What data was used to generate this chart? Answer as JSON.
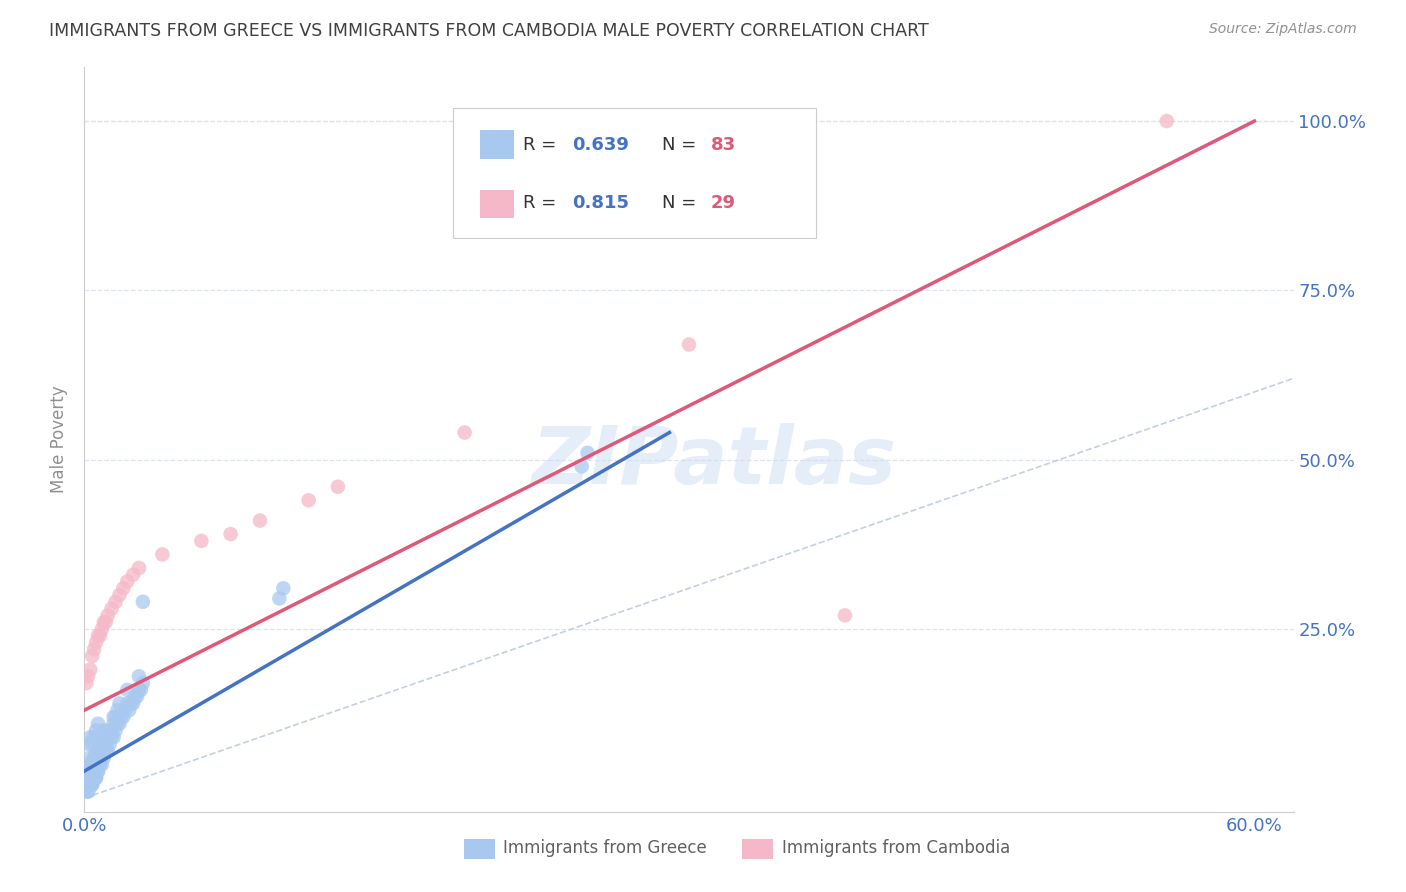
{
  "title": "IMMIGRANTS FROM GREECE VS IMMIGRANTS FROM CAMBODIA MALE POVERTY CORRELATION CHART",
  "source": "Source: ZipAtlas.com",
  "ylabel": "Male Poverty",
  "xlim": [
    0.0,
    0.62
  ],
  "ylim": [
    -0.02,
    1.08
  ],
  "greece_R": 0.639,
  "greece_N": 83,
  "cambodia_R": 0.815,
  "cambodia_N": 29,
  "greece_color": "#a8c8f0",
  "cambodia_color": "#f5b8c8",
  "greece_line_color": "#4472c4",
  "cambodia_line_color": "#e05878",
  "diagonal_color": "#b8c8e0",
  "background_color": "#ffffff",
  "grid_color": "#dde4ee",
  "title_color": "#404040",
  "source_color": "#909090",
  "axis_label_color": "#909090",
  "tick_color": "#4472c4",
  "watermark": "ZIPatlas",
  "greece_x": [
    0.001,
    0.001,
    0.002,
    0.002,
    0.002,
    0.002,
    0.003,
    0.003,
    0.003,
    0.003,
    0.004,
    0.004,
    0.004,
    0.005,
    0.005,
    0.005,
    0.006,
    0.006,
    0.006,
    0.007,
    0.007,
    0.007,
    0.008,
    0.008,
    0.009,
    0.009,
    0.01,
    0.01,
    0.011,
    0.012,
    0.012,
    0.013,
    0.014,
    0.015,
    0.015,
    0.016,
    0.017,
    0.018,
    0.019,
    0.02,
    0.021,
    0.022,
    0.023,
    0.024,
    0.025,
    0.026,
    0.027,
    0.028,
    0.029,
    0.03,
    0.001,
    0.001,
    0.002,
    0.002,
    0.003,
    0.003,
    0.004,
    0.004,
    0.005,
    0.005,
    0.006,
    0.006,
    0.007,
    0.007,
    0.008,
    0.008,
    0.009,
    0.01,
    0.011,
    0.012,
    0.013,
    0.014,
    0.015,
    0.016,
    0.017,
    0.018,
    0.022,
    0.028,
    0.1,
    0.102,
    0.255,
    0.258,
    0.03
  ],
  "greece_y": [
    0.02,
    0.04,
    0.01,
    0.03,
    0.05,
    0.08,
    0.02,
    0.04,
    0.06,
    0.09,
    0.02,
    0.05,
    0.08,
    0.03,
    0.06,
    0.09,
    0.03,
    0.06,
    0.1,
    0.04,
    0.07,
    0.11,
    0.05,
    0.08,
    0.05,
    0.09,
    0.06,
    0.1,
    0.07,
    0.07,
    0.1,
    0.08,
    0.09,
    0.09,
    0.12,
    0.1,
    0.11,
    0.11,
    0.12,
    0.12,
    0.13,
    0.14,
    0.13,
    0.14,
    0.14,
    0.15,
    0.15,
    0.16,
    0.16,
    0.17,
    0.01,
    0.03,
    0.01,
    0.03,
    0.02,
    0.04,
    0.02,
    0.05,
    0.03,
    0.06,
    0.03,
    0.06,
    0.04,
    0.07,
    0.05,
    0.08,
    0.06,
    0.07,
    0.08,
    0.09,
    0.1,
    0.1,
    0.11,
    0.12,
    0.13,
    0.14,
    0.16,
    0.18,
    0.295,
    0.31,
    0.49,
    0.51,
    0.29
  ],
  "cambodia_x": [
    0.001,
    0.002,
    0.003,
    0.004,
    0.005,
    0.006,
    0.007,
    0.008,
    0.009,
    0.01,
    0.011,
    0.012,
    0.014,
    0.016,
    0.018,
    0.02,
    0.022,
    0.025,
    0.028,
    0.04,
    0.06,
    0.075,
    0.09,
    0.115,
    0.13,
    0.195,
    0.31,
    0.39,
    0.555
  ],
  "cambodia_y": [
    0.17,
    0.18,
    0.19,
    0.21,
    0.22,
    0.23,
    0.24,
    0.24,
    0.25,
    0.26,
    0.26,
    0.27,
    0.28,
    0.29,
    0.3,
    0.31,
    0.32,
    0.33,
    0.34,
    0.36,
    0.38,
    0.39,
    0.41,
    0.44,
    0.46,
    0.54,
    0.67,
    0.27,
    1.0
  ],
  "greece_line_x": [
    0.0,
    0.3
  ],
  "greece_line_y": [
    0.04,
    0.54
  ],
  "cambodia_line_x": [
    0.0,
    0.6
  ],
  "cambodia_line_y": [
    0.13,
    1.0
  ]
}
